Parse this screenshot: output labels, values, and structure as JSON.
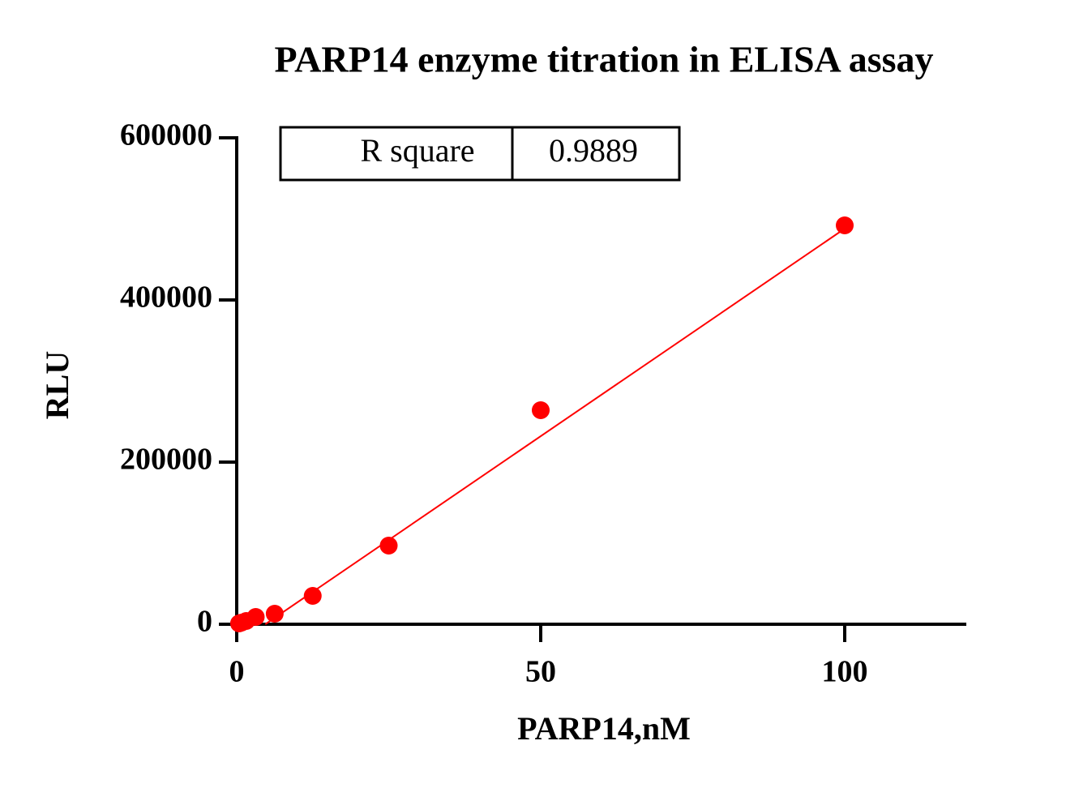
{
  "chart_data": {
    "type": "scatter",
    "title": "PARP14 enzyme titration in ELISA assay",
    "x_label": "PARP14,nM",
    "y_label": "RLU",
    "x": [
      0.390625,
      0.78125,
      1.5625,
      3.125,
      6.25,
      12.5,
      25,
      50,
      100
    ],
    "values": [
      1000,
      2000,
      4000,
      9000,
      13000,
      35000,
      97000,
      264000,
      492000
    ],
    "color": "#ff0000",
    "fit_line": {
      "x": [
        4.7,
        100
      ],
      "values": [
        0,
        488000
      ],
      "color": "#ff0000"
    },
    "table": [
      [
        "R square",
        "0.9889"
      ]
    ],
    "xlim": [
      0,
      120
    ],
    "ylim": [
      0,
      600000
    ],
    "xticks": [
      0,
      50,
      100
    ],
    "yticks": [
      0,
      200000,
      400000,
      600000
    ]
  }
}
